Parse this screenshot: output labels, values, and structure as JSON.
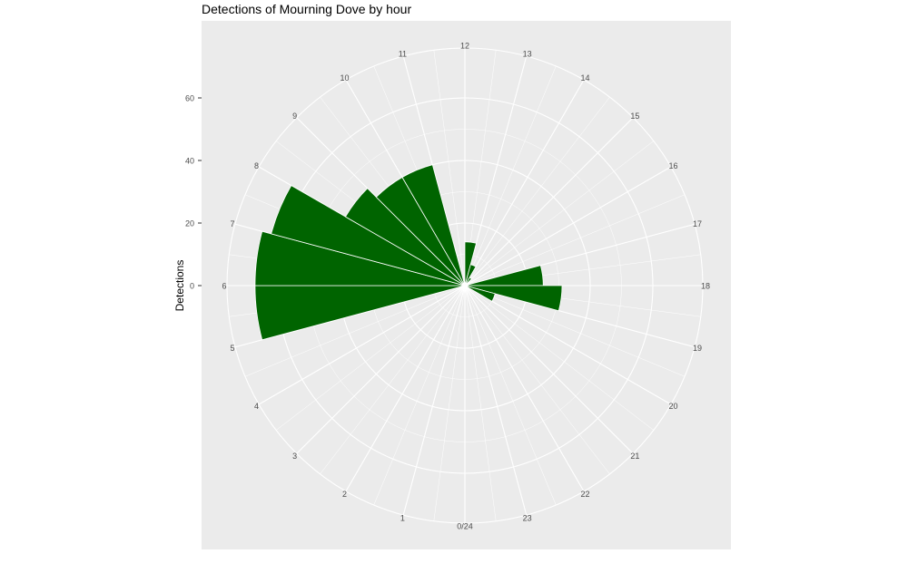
{
  "chart_data": {
    "type": "bar",
    "coord": "polar",
    "title": "Detections of Mourning Dove by hour",
    "ylabel": "Detections",
    "yticks": [
      0,
      20,
      40,
      60
    ],
    "ylim": [
      0,
      75
    ],
    "hour_labels": [
      "0/24",
      "1",
      "2",
      "3",
      "4",
      "5",
      "6",
      "7",
      "8",
      "9",
      "10",
      "11",
      "12",
      "13",
      "14",
      "15",
      "16",
      "17",
      "18",
      "19",
      "20",
      "21",
      "22",
      "23"
    ],
    "values": [
      0,
      0,
      0,
      0,
      0,
      67,
      67,
      64,
      44,
      40,
      40,
      0,
      14,
      7,
      3,
      0,
      0,
      25,
      31,
      10,
      0,
      0,
      0,
      0
    ],
    "colors": {
      "bar": "#006400",
      "panel": "#EBEBEB",
      "grid": "#FFFFFF",
      "text": "#4D4D4D"
    },
    "grid": true
  }
}
